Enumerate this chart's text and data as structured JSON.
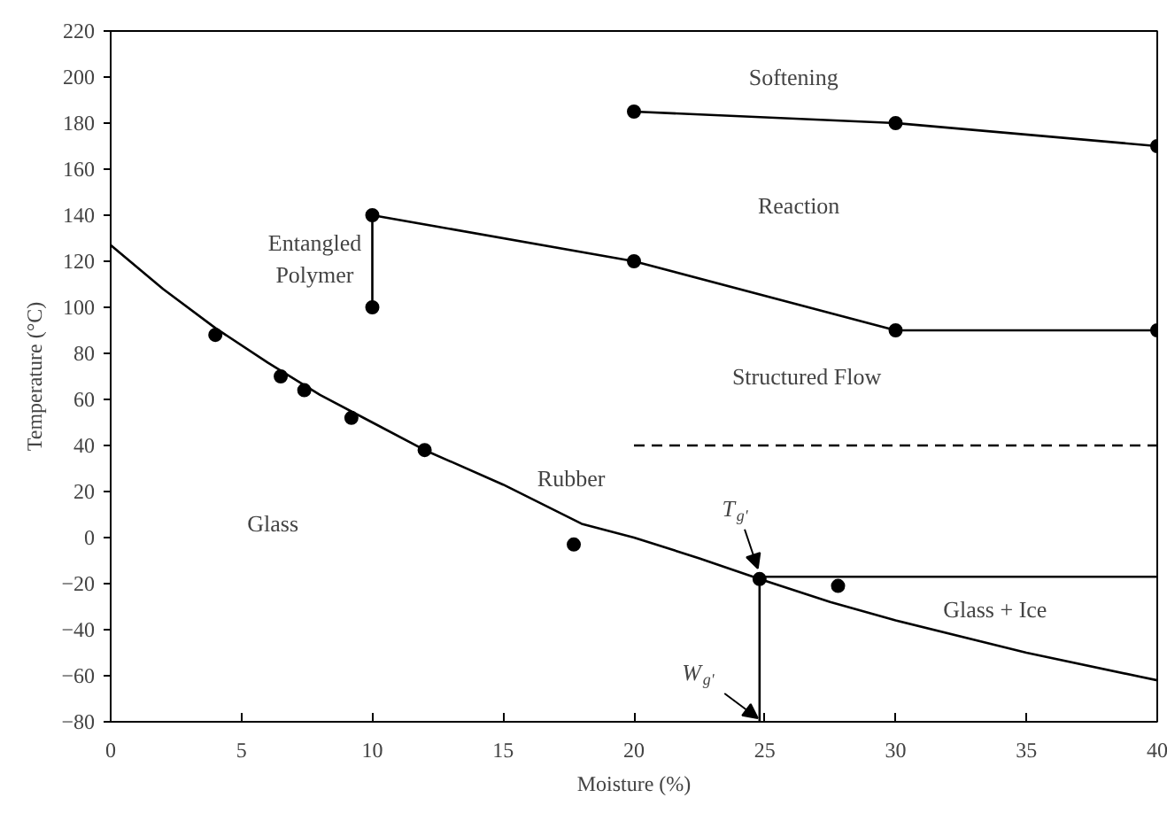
{
  "chart_data": {
    "type": "line",
    "xlabel": "Moisture (%)",
    "ylabel": "Temperature (°C)",
    "xlim": [
      0,
      40
    ],
    "ylim": [
      -80,
      220
    ],
    "xticks": [
      0,
      5,
      10,
      15,
      20,
      25,
      30,
      35,
      40
    ],
    "yticks": [
      -80,
      -60,
      -40,
      -20,
      0,
      20,
      40,
      60,
      80,
      100,
      120,
      140,
      160,
      180,
      200,
      220
    ],
    "grid": false,
    "series": [
      {
        "color": "#000000",
        "marker": "none",
        "line_style": "solid",
        "x": [
          0,
          2,
          4,
          6,
          8,
          10,
          12,
          15,
          18,
          20,
          22.5,
          24.8,
          27.5,
          30,
          35,
          40
        ],
        "values": [
          127,
          108,
          91,
          76,
          62,
          50,
          38,
          23,
          6,
          0,
          -9,
          -18,
          -28,
          -36,
          -50,
          -62
        ]
      },
      {
        "type": "scatter",
        "color": "#000000",
        "marker": "circle",
        "x": [
          4.0,
          6.5,
          7.4,
          9.2,
          12.0,
          17.7,
          24.8,
          27.8
        ],
        "values": [
          88,
          70,
          64,
          52,
          38,
          -3,
          -18,
          -21
        ]
      },
      {
        "color": "#000000",
        "marker": "circle",
        "line_style": "solid",
        "x": [
          10,
          10,
          20,
          30,
          40
        ],
        "values": [
          100,
          140,
          120,
          90,
          90
        ]
      },
      {
        "color": "#000000",
        "marker": "circle",
        "line_style": "solid",
        "x": [
          20,
          30,
          40
        ],
        "values": [
          185,
          180,
          170
        ]
      },
      {
        "color": "#000000",
        "marker": "none",
        "line_style": "dashed",
        "x": [
          20,
          40
        ],
        "values": [
          40,
          40
        ]
      },
      {
        "color": "#000000",
        "marker": "none",
        "line_style": "solid",
        "x": [
          24.8,
          24.8,
          40
        ],
        "values": [
          -80,
          -17,
          -17
        ]
      }
    ],
    "annotations": [
      "Softening",
      "Reaction",
      "Structured Flow",
      "Entangled\nPolymer",
      "Rubber",
      "Glass",
      "Glass + Ice",
      {
        "text": "T$_{g'}$",
        "x": 24.8,
        "y": -18
      },
      {
        "text": "W$_{g'}$",
        "x": 24.8,
        "y": -80
      }
    ]
  }
}
